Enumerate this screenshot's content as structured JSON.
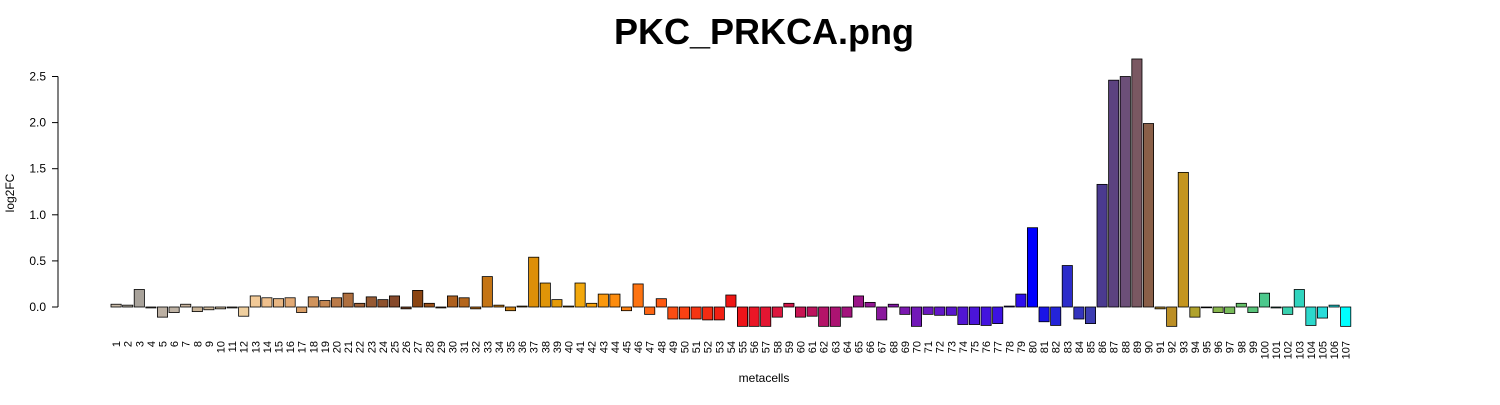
{
  "chart_data": {
    "type": "bar",
    "title": "PKC_PRKCA.png",
    "xlabel": "metacells",
    "ylabel": "log2FC",
    "ylim": [
      -0.25,
      2.75
    ],
    "yticks": [
      "0.0",
      "0.5",
      "1.0",
      "1.5",
      "2.0",
      "2.5"
    ],
    "grid": false,
    "legend": "none",
    "categories": [
      "1",
      "2",
      "3",
      "4",
      "5",
      "6",
      "7",
      "8",
      "9",
      "10",
      "11",
      "12",
      "13",
      "14",
      "15",
      "16",
      "17",
      "18",
      "19",
      "20",
      "21",
      "22",
      "23",
      "24",
      "25",
      "26",
      "27",
      "28",
      "29",
      "30",
      "31",
      "32",
      "33",
      "34",
      "35",
      "36",
      "37",
      "38",
      "39",
      "40",
      "41",
      "42",
      "43",
      "44",
      "45",
      "46",
      "47",
      "48",
      "49",
      "50",
      "51",
      "52",
      "53",
      "54",
      "55",
      "56",
      "57",
      "58",
      "59",
      "60",
      "61",
      "62",
      "63",
      "64",
      "65",
      "66",
      "67",
      "68",
      "69",
      "70",
      "71",
      "72",
      "73",
      "74",
      "75",
      "76",
      "77",
      "78",
      "79",
      "80",
      "81",
      "82",
      "83",
      "84",
      "85",
      "86",
      "87",
      "88",
      "89",
      "90",
      "91",
      "92",
      "93",
      "94",
      "95",
      "96",
      "97",
      "98",
      "99",
      "100",
      "101",
      "102",
      "103",
      "104",
      "105",
      "106",
      "107"
    ],
    "values": [
      0.03,
      0.02,
      0.19,
      -0.01,
      -0.11,
      -0.06,
      0.03,
      -0.05,
      -0.03,
      -0.02,
      -0.01,
      -0.1,
      0.12,
      0.1,
      0.09,
      0.1,
      -0.06,
      0.11,
      0.07,
      0.1,
      0.15,
      0.04,
      0.11,
      0.08,
      0.12,
      -0.02,
      0.18,
      0.04,
      -0.01,
      0.12,
      0.1,
      -0.02,
      0.33,
      0.02,
      -0.04,
      0.01,
      0.54,
      0.26,
      0.08,
      0.01,
      0.26,
      0.04,
      0.14,
      0.14,
      -0.04,
      0.25,
      -0.08,
      0.09,
      -0.13,
      -0.13,
      -0.13,
      -0.14,
      -0.14,
      0.13,
      -0.21,
      -0.21,
      -0.21,
      -0.11,
      0.04,
      -0.11,
      -0.1,
      -0.21,
      -0.21,
      -0.11,
      0.12,
      0.05,
      -0.14,
      0.03,
      -0.08,
      -0.21,
      -0.08,
      -0.09,
      -0.09,
      -0.19,
      -0.19,
      -0.2,
      -0.18,
      0.01,
      0.14,
      0.86,
      -0.16,
      -0.2,
      0.45,
      -0.13,
      -0.18,
      1.33,
      2.46,
      2.5,
      2.69,
      1.99,
      -0.02,
      -0.21,
      1.46,
      -0.11,
      0.0,
      -0.06,
      -0.07,
      0.04,
      -0.06,
      0.15,
      -0.01,
      -0.08,
      0.19,
      -0.2,
      -0.12,
      0.02,
      -0.21
    ],
    "colors": [
      "#C9BBA8",
      "#B5AEA0",
      "#A8A29A",
      "#BBAE9C",
      "#BCB0A3",
      "#BEB2A4",
      "#C8B49E",
      "#C7B296",
      "#CDB79A",
      "#D0BC9E",
      "#D7C09F",
      "#EFCF9F",
      "#F2CA98",
      "#EFC08D",
      "#E8B683",
      "#E2A974",
      "#D99E66",
      "#CF935C",
      "#C58752",
      "#BA7A48",
      "#AF6F3F",
      "#A06137",
      "#965932",
      "#8E522D",
      "#86492A",
      "#7B4324",
      "#8B4513",
      "#9A4F18",
      "#A5561B",
      "#AD5F1D",
      "#B4661C",
      "#BA6C18",
      "#C47414",
      "#CC7C12",
      "#D2820F",
      "#D88A0C",
      "#DD8F08",
      "#E09508",
      "#E59B08",
      "#EAA10A",
      "#F2A80D",
      "#F7A20D",
      "#FA980E",
      "#FC8C0E",
      "#FD800F",
      "#FD7311",
      "#FD6512",
      "#FD5912",
      "#FB4D12",
      "#F94112",
      "#F63512",
      "#F32B12",
      "#F12013",
      "#EF1614",
      "#EE1419",
      "#EA1626",
      "#E31632",
      "#DC163D",
      "#D21649",
      "#C81553",
      "#BD145E",
      "#B41368",
      "#AC1372",
      "#A3147D",
      "#9B1588",
      "#931693",
      "#8A179D",
      "#8318A7",
      "#7B18B0",
      "#7218B8",
      "#6A18C0",
      "#6217C7",
      "#5A16CD",
      "#5215D3",
      "#4B14D9",
      "#4313DE",
      "#3C12E3",
      "#3510E8",
      "#2E0EEC",
      "#0000FF",
      "#1A14E6",
      "#2424D8",
      "#2C2CCA",
      "#3434BE",
      "#3C3CB2",
      "#4B3A90",
      "#5C4280",
      "#6C4F78",
      "#7A5862",
      "#8A5F48",
      "#B48A2A",
      "#BC8F25",
      "#C49520",
      "#B0A22C",
      "#9CAE3C",
      "#88B64C",
      "#78BB5A",
      "#66C06A",
      "#58C47A",
      "#4CC88C",
      "#40CC9E",
      "#38D0AE",
      "#30D4BE",
      "#2CD8CC",
      "#28DCDA",
      "#22E4E8",
      "#00FFFF"
    ]
  }
}
